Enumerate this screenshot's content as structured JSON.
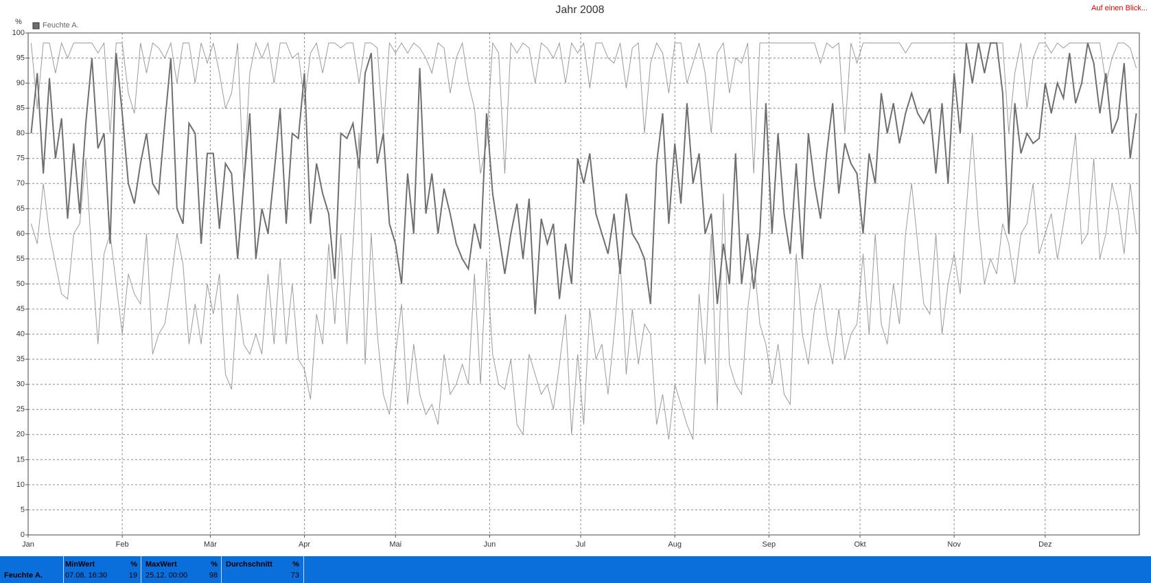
{
  "chart_data": {
    "type": "line",
    "title": "Jahr 2008",
    "link": "Auf einen Blick...",
    "ylabel": "%",
    "xlim": [
      0,
      366
    ],
    "xticks": [
      {
        "value": 0,
        "label": "Jan"
      },
      {
        "value": 31,
        "label": "Feb"
      },
      {
        "value": 60,
        "label": "Mär"
      },
      {
        "value": 91,
        "label": "Apr"
      },
      {
        "value": 121,
        "label": "Mai"
      },
      {
        "value": 152,
        "label": "Jun"
      },
      {
        "value": 182,
        "label": "Jul"
      },
      {
        "value": 213,
        "label": "Aug"
      },
      {
        "value": 244,
        "label": "Sep"
      },
      {
        "value": 274,
        "label": "Okt"
      },
      {
        "value": 305,
        "label": "Nov"
      },
      {
        "value": 335,
        "label": "Dez"
      }
    ],
    "ylim": [
      0,
      100
    ],
    "yticks": [
      0,
      5,
      10,
      15,
      20,
      25,
      30,
      35,
      40,
      45,
      50,
      55,
      60,
      65,
      70,
      75,
      80,
      85,
      90,
      95,
      100
    ],
    "grid": true,
    "x": [
      1,
      3,
      5,
      7,
      9,
      11,
      13,
      15,
      17,
      19,
      21,
      23,
      25,
      27,
      29,
      31,
      33,
      35,
      37,
      39,
      41,
      43,
      45,
      47,
      49,
      51,
      53,
      55,
      57,
      59,
      61,
      63,
      65,
      67,
      69,
      71,
      73,
      75,
      77,
      79,
      81,
      83,
      85,
      87,
      89,
      91,
      93,
      95,
      97,
      99,
      101,
      103,
      105,
      107,
      109,
      111,
      113,
      115,
      117,
      119,
      121,
      123,
      125,
      127,
      129,
      131,
      133,
      135,
      137,
      139,
      141,
      143,
      145,
      147,
      149,
      151,
      153,
      155,
      157,
      159,
      161,
      163,
      165,
      167,
      169,
      171,
      173,
      175,
      177,
      179,
      181,
      183,
      185,
      187,
      189,
      191,
      193,
      195,
      197,
      199,
      201,
      203,
      205,
      207,
      209,
      211,
      213,
      215,
      217,
      219,
      221,
      223,
      225,
      227,
      229,
      231,
      233,
      235,
      237,
      239,
      241,
      243,
      245,
      247,
      249,
      251,
      253,
      255,
      257,
      259,
      261,
      263,
      265,
      267,
      269,
      271,
      273,
      275,
      277,
      279,
      281,
      283,
      285,
      287,
      289,
      291,
      293,
      295,
      297,
      299,
      301,
      303,
      305,
      307,
      309,
      311,
      313,
      315,
      317,
      319,
      321,
      323,
      325,
      327,
      329,
      331,
      333,
      335,
      337,
      339,
      341,
      343,
      345,
      347,
      349,
      351,
      353,
      355,
      357,
      359,
      361,
      363,
      365
    ],
    "series": [
      {
        "name": "Feuchte A.",
        "color": "#6e6e6e",
        "values": [
          80,
          92,
          72,
          91,
          75,
          83,
          63,
          78,
          64,
          82,
          95,
          77,
          80,
          58,
          96,
          84,
          70,
          66,
          74,
          80,
          70,
          68,
          82,
          95,
          65,
          62,
          82,
          80,
          58,
          76,
          76,
          61,
          74,
          72,
          55,
          70,
          84,
          55,
          65,
          60,
          72,
          85,
          62,
          80,
          79,
          92,
          62,
          74,
          68,
          64,
          51,
          80,
          79,
          82,
          73,
          92,
          96,
          74,
          80,
          62,
          58,
          50,
          72,
          60,
          93,
          64,
          72,
          60,
          69,
          64,
          58,
          55,
          53,
          62,
          57,
          84,
          68,
          60,
          52,
          60,
          66,
          55,
          67,
          44,
          63,
          58,
          62,
          47,
          58,
          50,
          75,
          70,
          76,
          64,
          60,
          56,
          64,
          52,
          68,
          60,
          58,
          55,
          46,
          74,
          84,
          62,
          78,
          66,
          86,
          70,
          76,
          60,
          64,
          46,
          58,
          50,
          76,
          50,
          60,
          49,
          60,
          86,
          60,
          80,
          64,
          56,
          74,
          55,
          80,
          70,
          63,
          76,
          86,
          68,
          78,
          74,
          72,
          60,
          76,
          70,
          88,
          80,
          86,
          78,
          84,
          88,
          84,
          82,
          85,
          72,
          86,
          70,
          92,
          80,
          98,
          90,
          98,
          92,
          98,
          98,
          88,
          60,
          86,
          76,
          80,
          78,
          79,
          90,
          84,
          90,
          87,
          96,
          86,
          90,
          98,
          94,
          84,
          92,
          80,
          83,
          94,
          75,
          84
        ]
      },
      {
        "color": "#9a9a9a",
        "values": [
          98,
          85,
          98,
          98,
          92,
          98,
          95,
          98,
          98,
          98,
          98,
          96,
          98,
          80,
          98,
          98,
          88,
          84,
          98,
          92,
          98,
          97,
          95,
          98,
          90,
          98,
          98,
          90,
          98,
          94,
          98,
          92,
          85,
          88,
          98,
          70,
          92,
          98,
          95,
          98,
          90,
          98,
          98,
          95,
          96,
          86,
          96,
          98,
          92,
          98,
          98,
          97,
          98,
          98,
          90,
          98,
          98,
          97,
          80,
          98,
          96,
          98,
          96,
          98,
          97,
          95,
          92,
          98,
          97,
          88,
          95,
          98,
          90,
          85,
          72,
          78,
          98,
          96,
          72,
          98,
          96,
          98,
          97,
          90,
          98,
          97,
          95,
          98,
          90,
          98,
          96,
          98,
          89,
          98,
          98,
          95,
          94,
          98,
          89,
          97,
          98,
          80,
          94,
          98,
          96,
          88,
          98,
          98,
          90,
          94,
          98,
          92,
          80,
          96,
          98,
          88,
          95,
          94,
          98,
          72,
          98,
          98,
          98,
          98,
          98,
          98,
          98,
          98,
          98,
          98,
          94,
          98,
          97,
          98,
          80,
          98,
          94,
          98,
          98,
          98,
          98,
          98,
          98,
          98,
          96,
          98,
          98,
          98,
          98,
          98,
          98,
          98,
          98,
          98,
          98,
          98,
          98,
          98,
          98,
          98,
          98,
          80,
          92,
          98,
          85,
          95,
          98,
          98,
          96,
          98,
          97,
          98,
          98,
          98,
          98,
          98,
          98,
          90,
          95,
          98,
          98,
          97,
          93
        ]
      },
      {
        "color": "#9a9a9a",
        "values": [
          62,
          58,
          70,
          60,
          54,
          48,
          47,
          60,
          62,
          75,
          55,
          38,
          56,
          60,
          50,
          40,
          52,
          48,
          46,
          60,
          36,
          40,
          42,
          50,
          60,
          54,
          38,
          46,
          38,
          50,
          44,
          52,
          32,
          29,
          48,
          38,
          36,
          40,
          36,
          52,
          38,
          55,
          38,
          50,
          35,
          33,
          27,
          44,
          38,
          58,
          42,
          60,
          38,
          58,
          80,
          34,
          60,
          40,
          28,
          24,
          36,
          46,
          26,
          38,
          28,
          24,
          26,
          22,
          36,
          28,
          30,
          34,
          30,
          52,
          30,
          55,
          36,
          30,
          29,
          35,
          22,
          20,
          36,
          32,
          28,
          30,
          25,
          34,
          44,
          20,
          36,
          22,
          45,
          35,
          38,
          28,
          40,
          55,
          32,
          45,
          34,
          42,
          40,
          22,
          28,
          19,
          30,
          26,
          22,
          19,
          48,
          34,
          60,
          25,
          68,
          34,
          30,
          28,
          45,
          55,
          42,
          38,
          30,
          38,
          28,
          26,
          56,
          40,
          34,
          45,
          50,
          40,
          34,
          45,
          35,
          40,
          42,
          56,
          40,
          60,
          42,
          38,
          50,
          42,
          60,
          70,
          58,
          46,
          44,
          60,
          40,
          50,
          56,
          48,
          65,
          80,
          62,
          50,
          55,
          52,
          62,
          58,
          50,
          60,
          62,
          70,
          56,
          60,
          64,
          55,
          62,
          70,
          80,
          58,
          60,
          75,
          55,
          60,
          70,
          65,
          56,
          70,
          60
        ]
      }
    ]
  },
  "summary": {
    "series": "Feuchte A.",
    "cells": [
      {
        "header": "MinWert",
        "unit": "%",
        "time": "07.08.  16:30",
        "value": "19"
      },
      {
        "header": "MaxWert",
        "unit": "%",
        "time": "25.12.  00:00",
        "value": "98"
      },
      {
        "header": "Durchschnitt",
        "unit": "%",
        "time": "",
        "value": "73"
      }
    ]
  }
}
